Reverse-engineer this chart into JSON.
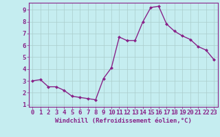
{
  "x": [
    0,
    1,
    2,
    3,
    4,
    5,
    6,
    7,
    8,
    9,
    10,
    11,
    12,
    13,
    14,
    15,
    16,
    17,
    18,
    19,
    20,
    21,
    22,
    23
  ],
  "y": [
    3.0,
    3.1,
    2.5,
    2.5,
    2.2,
    1.7,
    1.6,
    1.5,
    1.4,
    3.2,
    4.1,
    6.7,
    6.4,
    6.4,
    8.0,
    9.2,
    9.3,
    7.8,
    7.2,
    6.8,
    6.5,
    5.9,
    5.6,
    4.8
  ],
  "line_color": "#882288",
  "marker": "D",
  "marker_size": 2.0,
  "bg_color": "#c5edf0",
  "grid_color": "#aacccc",
  "xlabel": "Windchill (Refroidissement éolien,°C)",
  "xlim": [
    -0.5,
    23.5
  ],
  "ylim": [
    0.8,
    9.6
  ],
  "yticks": [
    1,
    2,
    3,
    4,
    5,
    6,
    7,
    8,
    9
  ],
  "xticks": [
    0,
    1,
    2,
    3,
    4,
    5,
    6,
    7,
    8,
    9,
    10,
    11,
    12,
    13,
    14,
    15,
    16,
    17,
    18,
    19,
    20,
    21,
    22,
    23
  ],
  "xlabel_fontsize": 6.5,
  "tick_fontsize": 6.5,
  "linewidth": 1.0
}
